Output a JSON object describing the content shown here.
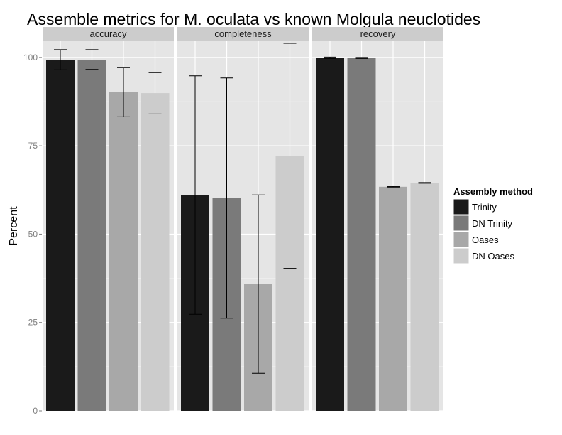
{
  "chart_data": {
    "type": "bar",
    "title": "Assemble metrics for M. oculata vs known Molgula neuclotides",
    "ylabel": "Percent",
    "xlabel": "",
    "ylim": [
      0,
      105
    ],
    "yticks": [
      0,
      25,
      50,
      75,
      100
    ],
    "ytick_labels": [
      "0",
      "25",
      "50",
      "75",
      "100"
    ],
    "grid": true,
    "legend": {
      "title": "Assembly method",
      "position": "right",
      "items": [
        "Trinity",
        "DN Trinity",
        "Oases",
        "DN Oases"
      ],
      "colors": [
        "#1a1a1a",
        "#7a7a7a",
        "#a8a8a8",
        "#cccccc"
      ]
    },
    "panels": [
      {
        "name": "accuracy",
        "series": [
          {
            "name": "Trinity",
            "value": 99.3,
            "err_low": 96.5,
            "err_high": 102.2
          },
          {
            "name": "DN Trinity",
            "value": 99.3,
            "err_low": 96.6,
            "err_high": 102.2
          },
          {
            "name": "Oases",
            "value": 90.2,
            "err_low": 83.2,
            "err_high": 97.2
          },
          {
            "name": "DN Oases",
            "value": 89.9,
            "err_low": 84.0,
            "err_high": 95.8
          }
        ]
      },
      {
        "name": "completeness",
        "series": [
          {
            "name": "Trinity",
            "value": 61.0,
            "err_low": 27.3,
            "err_high": 94.8
          },
          {
            "name": "DN Trinity",
            "value": 60.2,
            "err_low": 26.2,
            "err_high": 94.2
          },
          {
            "name": "Oases",
            "value": 35.9,
            "err_low": 10.6,
            "err_high": 61.1
          },
          {
            "name": "DN Oases",
            "value": 72.1,
            "err_low": 40.3,
            "err_high": 104.0
          }
        ]
      },
      {
        "name": "recovery",
        "series": [
          {
            "name": "Trinity",
            "value": 99.9,
            "err_low": 99.7,
            "err_high": 100.1
          },
          {
            "name": "DN Trinity",
            "value": 99.8,
            "err_low": 99.7,
            "err_high": 100.0
          },
          {
            "name": "Oases",
            "value": 63.4,
            "err_low": 63.3,
            "err_high": 63.5
          },
          {
            "name": "DN Oases",
            "value": 64.5,
            "err_low": 64.4,
            "err_high": 64.6
          }
        ]
      }
    ]
  }
}
